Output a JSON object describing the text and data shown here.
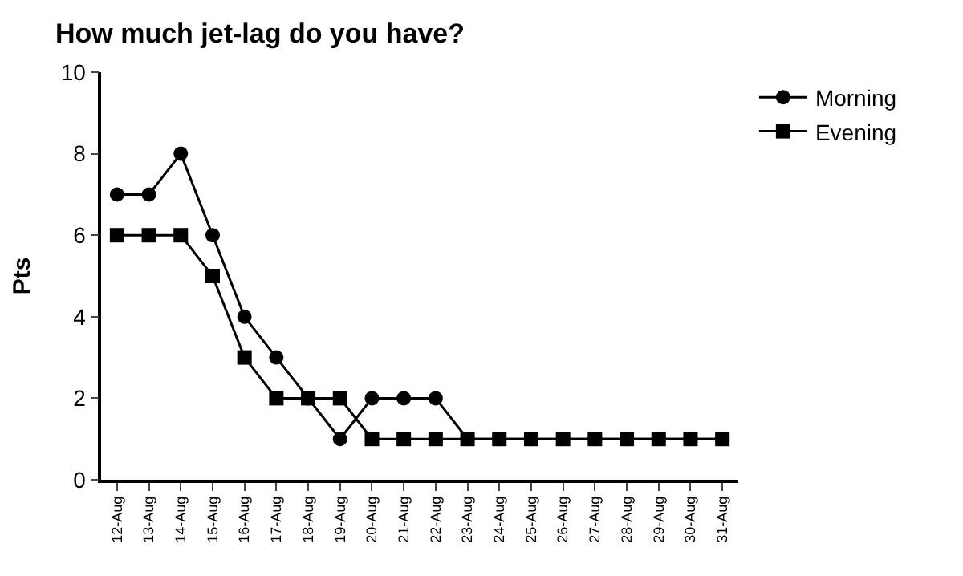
{
  "chart_data": {
    "type": "line",
    "title": "How much jet-lag do you have?",
    "ylabel": "Pts",
    "categories": [
      "12-Aug",
      "13-Aug",
      "14-Aug",
      "15-Aug",
      "16-Aug",
      "17-Aug",
      "18-Aug",
      "19-Aug",
      "20-Aug",
      "21-Aug",
      "22-Aug",
      "23-Aug",
      "24-Aug",
      "25-Aug",
      "26-Aug",
      "27-Aug",
      "28-Aug",
      "29-Aug",
      "30-Aug",
      "31-Aug"
    ],
    "series": [
      {
        "name": "Morning",
        "color": "#000000",
        "marker": "circle",
        "values": [
          7,
          7,
          8,
          6,
          4,
          3,
          2,
          1,
          2,
          2,
          2,
          1,
          1,
          1,
          1,
          1,
          1,
          1,
          1,
          1
        ]
      },
      {
        "name": "Evening",
        "color": "#000000",
        "marker": "square",
        "values": [
          6,
          6,
          6,
          5,
          3,
          2,
          2,
          2,
          1,
          1,
          1,
          1,
          1,
          1,
          1,
          1,
          1,
          1,
          1,
          1
        ]
      }
    ],
    "ylim": [
      0,
      10
    ],
    "yticks": [
      0,
      2,
      4,
      6,
      8,
      10
    ],
    "legend": "right",
    "line_style": "solid"
  }
}
